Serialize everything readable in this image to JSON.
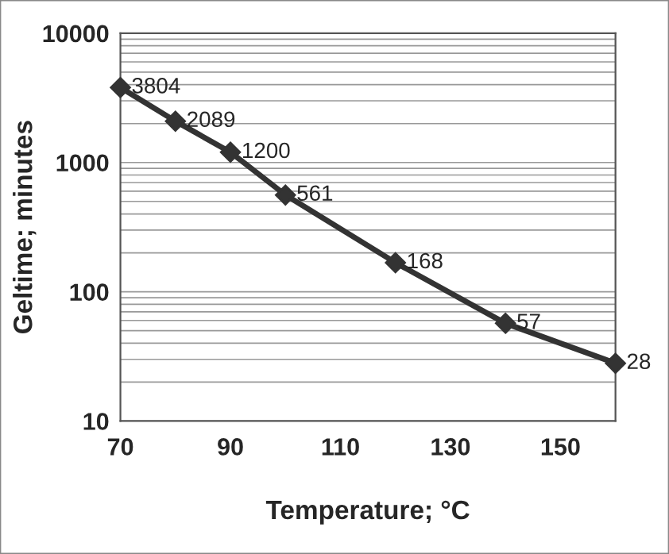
{
  "chart_data": {
    "type": "line",
    "xlabel": "Temperature; °C",
    "ylabel": "Geltime; minutes",
    "x": [
      70,
      80,
      90,
      100,
      120,
      140,
      160
    ],
    "series": [
      {
        "color": "#333333",
        "values": [
          3804,
          2089,
          1200,
          561,
          168,
          57,
          28
        ]
      }
    ],
    "log": "y",
    "xlim": [
      70,
      160
    ],
    "xticks": [
      70,
      90,
      110,
      130,
      150
    ],
    "ylim": [
      10,
      10000
    ],
    "yticks": [
      10,
      100,
      1000,
      10000
    ],
    "grid": "y",
    "marker": "diamond",
    "line_style": "solid",
    "data_labels": true
  }
}
